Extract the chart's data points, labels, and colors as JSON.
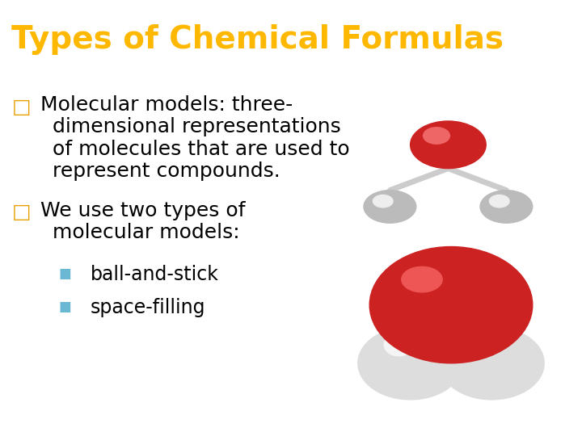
{
  "title": "Types of Chemical Formulas",
  "title_bg_color": "#000000",
  "title_text_color": "#FFB800",
  "body_bg_color": "#FFFFFF",
  "bullet1_marker": "□",
  "bullet1_text_line1": "Molecular models: three-",
  "bullet1_text_line2": "dimensional representations",
  "bullet1_text_line3": "of molecules that are used to",
  "bullet1_text_line4": "represent compounds.",
  "bullet2_marker": "□",
  "bullet2_text_line1": "We use two types of",
  "bullet2_text_line2": "molecular models:",
  "sub_bullet_marker": "■",
  "sub_bullet1": "ball-and-stick",
  "sub_bullet2": "space-filling",
  "bullet_color": "#E8A000",
  "sub_bullet_color": "#6BB8D4",
  "text_color": "#000000",
  "title_font_size": 28,
  "body_font_size": 18,
  "sub_font_size": 17
}
